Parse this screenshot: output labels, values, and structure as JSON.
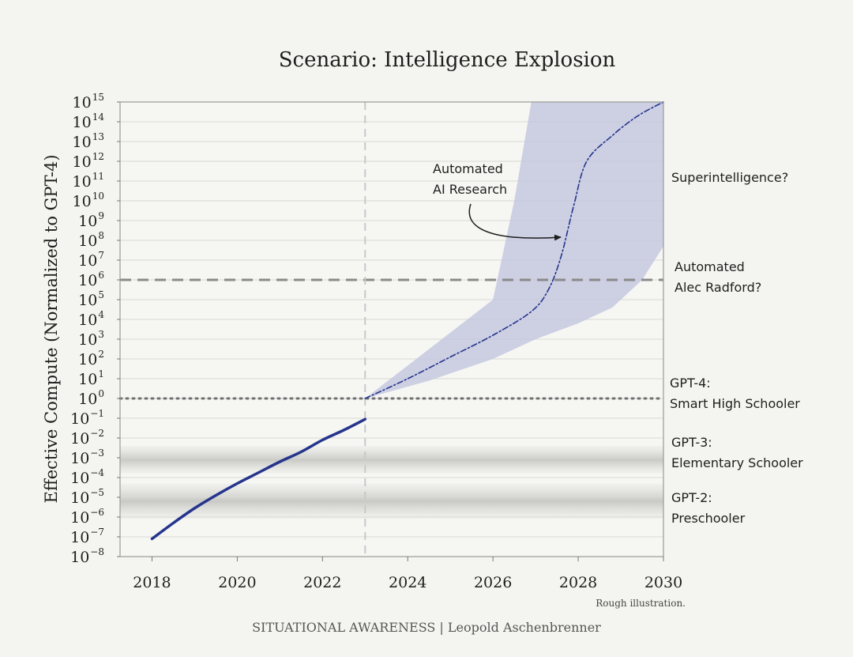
{
  "chart_data": {
    "type": "line",
    "title": "Scenario: Intelligence Explosion",
    "ylabel": "Effective Compute (Normalized to GPT-4)",
    "xlabel": "",
    "y_scale": "log10",
    "xlim": [
      2017.25,
      2030
    ],
    "ylim_exponent": [
      -8,
      15
    ],
    "x_ticks": [
      "2018",
      "2020",
      "2022",
      "2024",
      "2026",
      "2028",
      "2030"
    ],
    "y_tick_exponents": [
      -8,
      -7,
      -6,
      -5,
      -4,
      -3,
      -2,
      -1,
      0,
      1,
      2,
      3,
      4,
      5,
      6,
      7,
      8,
      9,
      10,
      11,
      12,
      13,
      14,
      15
    ],
    "grid": "horizontal",
    "series": [
      {
        "style": "solid",
        "color": "#25358c",
        "x": [
          2018,
          2018.5,
          2019,
          2019.5,
          2020,
          2020.5,
          2021,
          2021.5,
          2022,
          2022.5,
          2023
        ],
        "log10_y": [
          -7.1,
          -6.3,
          -5.55,
          -4.9,
          -4.3,
          -3.75,
          -3.2,
          -2.7,
          -2.1,
          -1.6,
          -1.05
        ]
      },
      {
        "style": "dash-dot",
        "color": "#25358c",
        "x": [
          2023,
          2024,
          2025,
          2026,
          2026.9,
          2027.3,
          2027.6,
          2027.9,
          2028.2,
          2028.8,
          2029.4,
          2030
        ],
        "log10_y": [
          0.0,
          1.0,
          2.1,
          3.2,
          4.4,
          5.5,
          7.2,
          9.8,
          12.0,
          13.3,
          14.3,
          15.0
        ]
      }
    ],
    "uncertainty_band": {
      "color": "#c5c8df",
      "upper": {
        "x": [
          2023,
          2026,
          2026.5,
          2026.9
        ],
        "log10_y": [
          0.0,
          5.0,
          10.0,
          15.0
        ]
      },
      "lower": {
        "x": [
          2023,
          2024.5,
          2026,
          2027,
          2028,
          2028.8,
          2029.5,
          2030
        ],
        "log10_y": [
          0.0,
          0.9,
          2.0,
          3.0,
          3.8,
          4.6,
          6.0,
          7.7
        ]
      },
      "right_edge": {
        "x": 2030,
        "log10_y_top": 15.0,
        "log10_y_bottom": 7.7
      }
    },
    "reference_lines": [
      {
        "axis": "y",
        "log10_value": 6,
        "style": "dashed",
        "color": "#8a8a8a"
      },
      {
        "axis": "y",
        "log10_value": 0,
        "style": "dotted",
        "color": "#707070"
      },
      {
        "axis": "x",
        "value": 2023,
        "style": "dashed",
        "color": "#c8c8c8"
      }
    ],
    "shaded_bands": [
      {
        "log10_from": -3.8,
        "log10_to": -2.4,
        "label_lines": [
          "GPT-3:",
          "Elementary Schooler"
        ]
      },
      {
        "log10_from": -6.1,
        "log10_to": -4.3,
        "label_lines": [
          "GPT-2:",
          "Preschooler"
        ]
      }
    ],
    "annotations": {
      "superintelligence": "Superintelligence?",
      "alec_line1": "Automated",
      "alec_line2": "Alec Radford?",
      "gpt4_line1": "GPT-4:",
      "gpt4_line2": "Smart High Schooler",
      "gpt3_line1": "GPT-3:",
      "gpt3_line2": "Elementary Schooler",
      "gpt2_line1": "GPT-2:",
      "gpt2_line2": "Preschooler",
      "air_line1": "Automated",
      "air_line2": "AI Research"
    },
    "note": "Rough illustration.",
    "footer": "SITUATIONAL AWARENESS | Leopold Aschenbrenner"
  }
}
